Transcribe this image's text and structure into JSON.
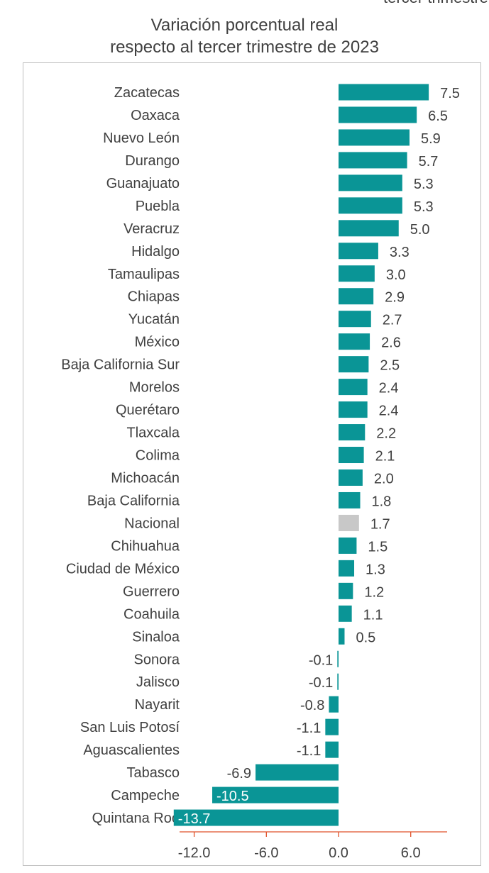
{
  "header": {
    "corner_fragment": "tercer trimestre",
    "title_line1": "Variación porcentual real",
    "title_line2": "respecto al tercer trimestre de 2023"
  },
  "colors": {
    "bar": "#0a9596",
    "highlight": "#c8c8c8",
    "axis": "#e0522a",
    "frame": "#bfbfbf",
    "text": "#404040",
    "inside_label": "#ffffff"
  },
  "chart_data": {
    "type": "bar",
    "orientation": "horizontal",
    "title": "Variación porcentual real respecto al tercer trimestre de 2023",
    "xlabel": "",
    "ylabel": "",
    "xlim": [
      -12.0,
      9.0
    ],
    "xticks": [
      -12.0,
      -6.0,
      0.0,
      6.0
    ],
    "xtick_labels": [
      "-12.0",
      "-6.0",
      "0.0",
      "6.0"
    ],
    "grid": false,
    "legend": "none",
    "highlight_category": "Nacional",
    "categories": [
      "Zacatecas",
      "Oaxaca",
      "Nuevo León",
      "Durango",
      "Guanajuato",
      "Puebla",
      "Veracruz",
      "Hidalgo",
      "Tamaulipas",
      "Chiapas",
      "Yucatán",
      "México",
      "Baja California Sur",
      "Morelos",
      "Querétaro",
      "Tlaxcala",
      "Colima",
      "Michoacán",
      "Baja California",
      "Nacional",
      "Chihuahua",
      "Ciudad de México",
      "Guerrero",
      "Coahuila",
      "Sinaloa",
      "Sonora",
      "Jalisco",
      "Nayarit",
      "San Luis Potosí",
      "Aguascalientes",
      "Tabasco",
      "Campeche",
      "Quintana Roo"
    ],
    "values": [
      7.5,
      6.5,
      5.9,
      5.7,
      5.3,
      5.3,
      5.0,
      3.3,
      3.0,
      2.9,
      2.7,
      2.6,
      2.5,
      2.4,
      2.4,
      2.2,
      2.1,
      2.0,
      1.8,
      1.7,
      1.5,
      1.3,
      1.2,
      1.1,
      0.5,
      -0.1,
      -0.1,
      -0.8,
      -1.1,
      -1.1,
      -6.9,
      -10.5,
      -13.7
    ],
    "labels": [
      "7.5",
      "6.5",
      "5.9",
      "5.7",
      "5.3",
      "5.3",
      "5.0",
      "3.3",
      "3.0",
      "2.9",
      "2.7",
      "2.6",
      "2.5",
      "2.4",
      "2.4",
      "2.2",
      "2.1",
      "2.0",
      "1.8",
      "1.7",
      "1.5",
      "1.3",
      "1.2",
      "1.1",
      "0.5",
      "-0.1",
      "-0.1",
      "-0.8",
      "-1.1",
      "-1.1",
      "-6.9",
      "-10.5",
      "-13.7"
    ],
    "inside_labels": [
      "-10.5",
      "-13.7"
    ]
  }
}
